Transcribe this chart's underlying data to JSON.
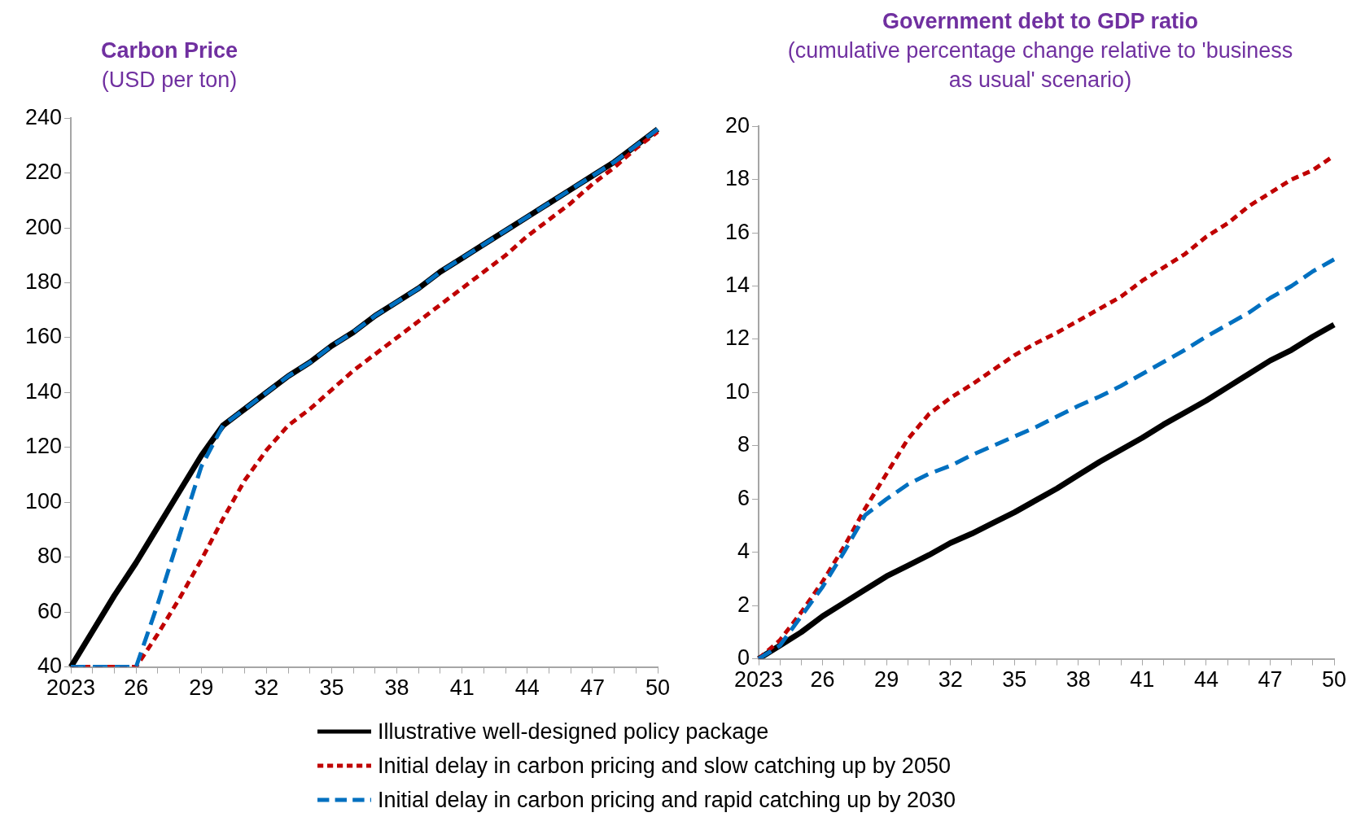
{
  "chart_data": [
    {
      "type": "line",
      "title": "Carbon Price",
      "subtitle": "(USD per ton)",
      "categories": [
        "2023",
        null,
        null,
        "26",
        null,
        null,
        "29",
        null,
        null,
        "32",
        null,
        null,
        "35",
        null,
        null,
        "38",
        null,
        null,
        "41",
        null,
        null,
        "44",
        null,
        null,
        "47",
        null,
        null,
        "50"
      ],
      "ylim": [
        40,
        240
      ],
      "yticks": [
        40,
        60,
        80,
        100,
        120,
        140,
        160,
        180,
        200,
        220,
        240
      ],
      "grid": false,
      "legend": "bottom",
      "marker": "none",
      "series": [
        {
          "name": "Illustrative well-designed policy package",
          "color": "#000000",
          "line_style": "solid",
          "values": [
            40,
            53,
            66,
            78,
            91,
            104,
            117,
            128,
            134,
            140,
            146,
            151,
            157,
            162,
            168,
            173,
            178,
            184,
            189,
            194,
            199,
            204,
            209,
            214,
            219,
            224,
            230,
            236
          ]
        },
        {
          "name": "Initial delay in carbon pricing and slow catching up by 2050",
          "color": "#c00000",
          "line_style": "dotted",
          "values": [
            40,
            40,
            40,
            40,
            52,
            65,
            79,
            94,
            108,
            119,
            128,
            134,
            141,
            148,
            154,
            160,
            166,
            172,
            178,
            184,
            190,
            197,
            203,
            209,
            216,
            222,
            229,
            235
          ]
        },
        {
          "name": "Initial delay in carbon pricing and rapid catching up by 2030",
          "color": "#0070c0",
          "line_style": "dashed",
          "values": [
            40,
            40,
            40,
            40,
            63,
            88,
            113,
            128,
            134,
            140,
            146,
            151,
            157,
            162,
            168,
            173,
            178,
            184,
            189,
            194,
            199,
            204,
            209,
            214,
            219,
            224,
            230,
            236
          ]
        }
      ]
    },
    {
      "type": "line",
      "title": "Government debt to GDP ratio",
      "subtitle": "(cumulative percentage change relative to 'business as usual' scenario)",
      "categories": [
        "2023",
        null,
        null,
        "26",
        null,
        null,
        "29",
        null,
        null,
        "32",
        null,
        null,
        "35",
        null,
        null,
        "38",
        null,
        null,
        "41",
        null,
        null,
        "44",
        null,
        null,
        "47",
        null,
        null,
        "50"
      ],
      "ylim": [
        0,
        20
      ],
      "yticks": [
        0,
        2,
        4,
        6,
        8,
        10,
        12,
        14,
        16,
        18,
        20
      ],
      "grid": false,
      "marker": "none",
      "series": [
        {
          "color": "#000000",
          "line_style": "solid",
          "values": [
            0,
            0.5,
            1.0,
            1.6,
            2.1,
            2.6,
            3.1,
            3.5,
            3.9,
            4.35,
            4.7,
            5.1,
            5.5,
            5.95,
            6.4,
            6.9,
            7.4,
            7.85,
            8.3,
            8.8,
            9.25,
            9.7,
            10.2,
            10.7,
            11.2,
            11.6,
            12.1,
            12.55
          ]
        },
        {
          "color": "#c00000",
          "line_style": "dotted",
          "values": [
            0,
            0.7,
            1.75,
            2.9,
            4.2,
            5.65,
            6.95,
            8.25,
            9.2,
            9.8,
            10.3,
            10.85,
            11.4,
            11.85,
            12.25,
            12.7,
            13.15,
            13.6,
            14.2,
            14.7,
            15.2,
            15.85,
            16.35,
            17.0,
            17.5,
            18.0,
            18.35,
            18.9
          ]
        },
        {
          "color": "#0070c0",
          "line_style": "dashed",
          "values": [
            0,
            0.5,
            1.6,
            2.7,
            4.0,
            5.4,
            6.0,
            6.55,
            6.95,
            7.25,
            7.65,
            8.0,
            8.35,
            8.7,
            9.1,
            9.5,
            9.85,
            10.25,
            10.7,
            11.15,
            11.6,
            12.1,
            12.55,
            13.0,
            13.55,
            14.0,
            14.55,
            15.0
          ]
        }
      ]
    }
  ]
}
